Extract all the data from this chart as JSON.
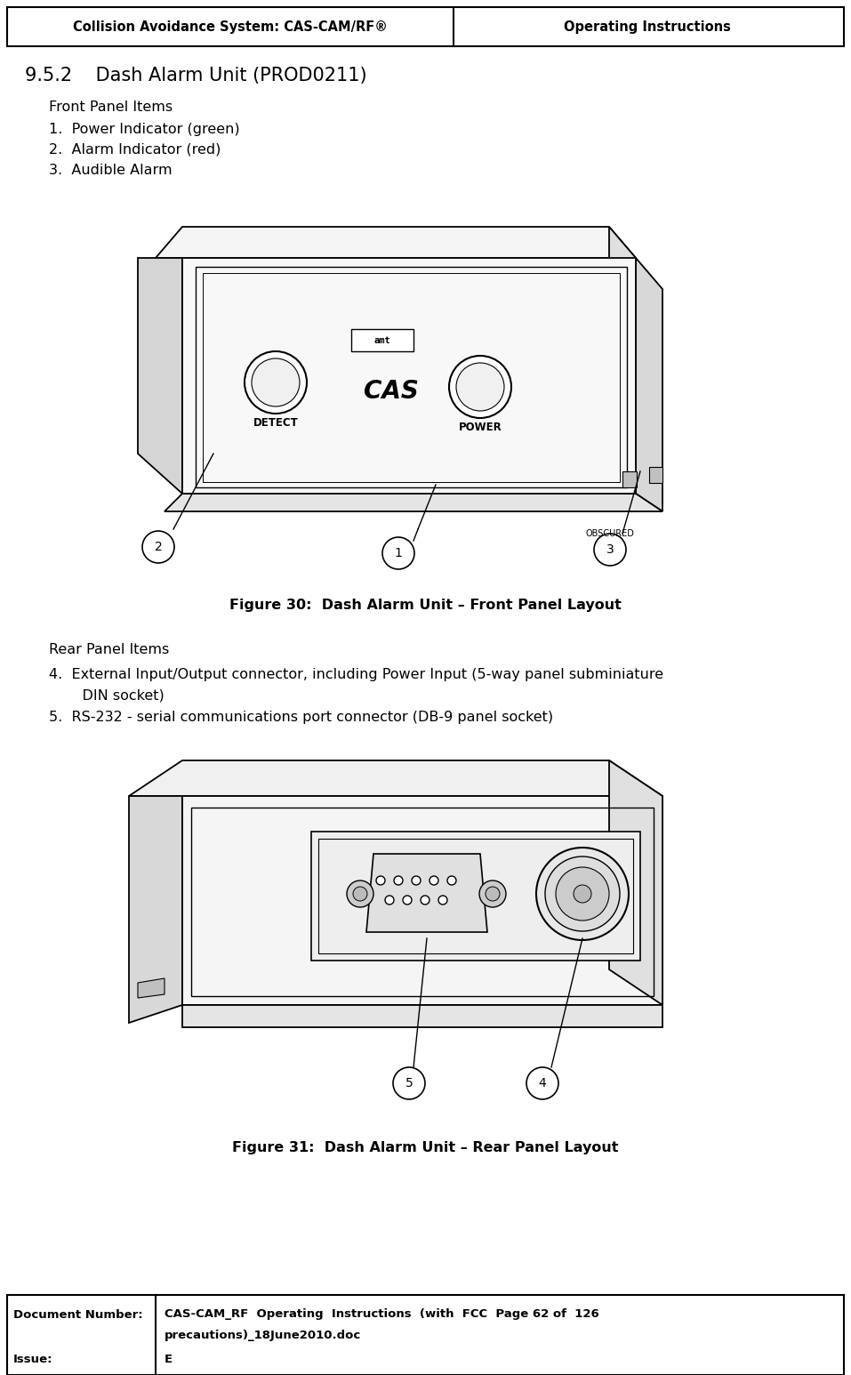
{
  "header_left": "Collision Avoidance System: CAS-CAM/RF®",
  "header_right": "Operating Instructions",
  "section_title": "9.5.2    Dash Alarm Unit (PROD0211)",
  "front_panel_header": "Front Panel Items",
  "front_panel_items": [
    "1.  Power Indicator (green)",
    "2.  Alarm Indicator (red)",
    "3.  Audible Alarm"
  ],
  "figure30_caption": "Figure 30:  Dash Alarm Unit – Front Panel Layout",
  "rear_panel_header": "Rear Panel Items",
  "rear_panel_item4a": "4.  External Input/Output connector, including Power Input (5-way panel subminiature",
  "rear_panel_item4b": "    DIN socket)",
  "rear_panel_item5": "5.  RS-232 - serial communications port connector (DB-9 panel socket)",
  "figure31_caption": "Figure 31:  Dash Alarm Unit – Rear Panel Layout",
  "footer_col1_row1": "Document Number:",
  "footer_col2_row1": "CAS-CAM_RF  Operating  Instructions  (with  FCC  Page 62 of  126",
  "footer_col2_row1b": "precautions)_18June2010.doc",
  "footer_col1_row2": "Issue:",
  "footer_col2_row2": "E",
  "bg_color": "#ffffff",
  "text_color": "#000000"
}
